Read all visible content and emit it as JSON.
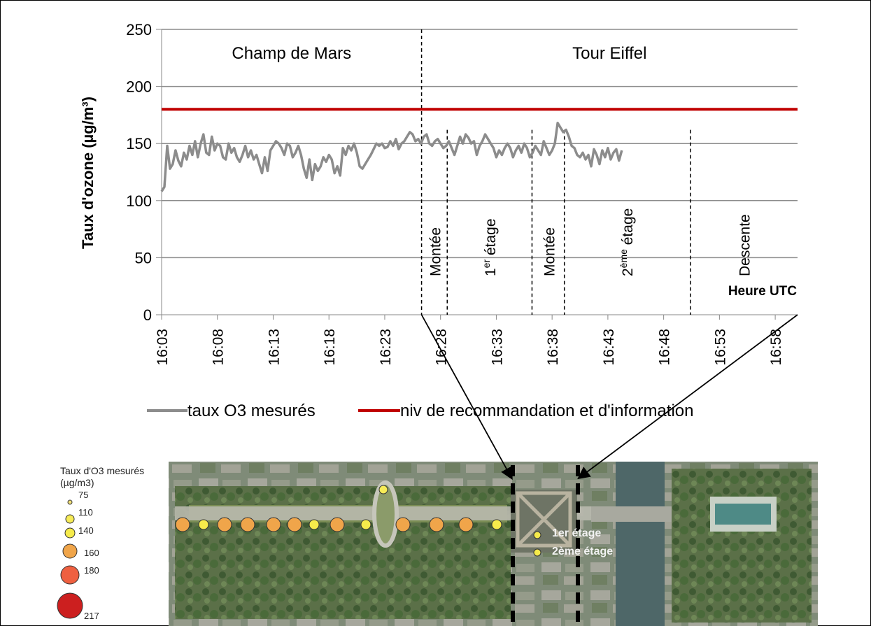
{
  "chart_data": {
    "type": "line",
    "ylabel": "Taux d'ozone (µg/m³)",
    "xlabel": "Heure UTC",
    "ylim": [
      0,
      250
    ],
    "yticks": [
      0,
      50,
      100,
      150,
      200,
      250
    ],
    "x_range_minutes": [
      0,
      57
    ],
    "x_tick_labels": [
      "16:03",
      "16:08",
      "16:13",
      "16:18",
      "16:23",
      "16:28",
      "16:33",
      "16:38",
      "16:43",
      "16:48",
      "16:53",
      "16:58"
    ],
    "grid": "horizontal",
    "legend_position": "bottom",
    "series": [
      {
        "name": "taux O3 mesurés",
        "color": "#8c8c8c",
        "x_step_minutes": 0.25,
        "values": [
          108,
          112,
          148,
          128,
          132,
          144,
          135,
          130,
          142,
          136,
          148,
          140,
          152,
          138,
          150,
          158,
          142,
          140,
          156,
          144,
          150,
          148,
          138,
          136,
          150,
          142,
          146,
          138,
          134,
          140,
          148,
          138,
          144,
          136,
          140,
          132,
          124,
          138,
          126,
          144,
          148,
          152,
          150,
          146,
          140,
          150,
          148,
          138,
          142,
          148,
          140,
          128,
          120,
          136,
          118,
          132,
          126,
          130,
          138,
          134,
          140,
          136,
          124,
          130,
          122,
          146,
          140,
          148,
          144,
          150,
          142,
          130,
          128,
          132,
          136,
          140,
          145,
          150,
          148,
          150,
          146,
          147,
          152,
          148,
          154,
          145,
          150,
          152,
          156,
          160,
          158,
          152,
          154,
          150,
          156,
          158,
          150,
          148,
          152,
          154,
          150,
          146,
          148,
          152,
          146,
          140,
          148,
          156,
          150,
          158,
          155,
          150,
          152,
          140,
          148,
          152,
          158,
          154,
          150,
          146,
          138,
          144,
          140,
          146,
          150,
          146,
          138,
          144,
          148,
          142,
          150,
          146,
          138,
          142,
          148,
          144,
          140,
          152,
          146,
          140,
          144,
          150,
          168,
          164,
          160,
          162,
          156,
          148,
          146,
          140,
          138,
          142,
          136,
          140,
          130,
          145,
          140,
          132,
          144,
          138,
          146,
          136,
          142,
          145,
          135,
          144
        ]
      },
      {
        "name": "niv de recommandation et d'information",
        "color": "#c00000",
        "constant": 180
      }
    ],
    "section_labels": [
      {
        "text": "Champ de Mars",
        "x_start": 0,
        "x_end": 23.3
      },
      {
        "text": "Tour Eiffel",
        "x_start": 23.3,
        "x_end": 57
      }
    ],
    "phase_dividers": [
      23.3,
      25.6,
      33.2,
      36.1,
      47.4
    ],
    "phases": [
      {
        "label": "Montée",
        "x": 24.5
      },
      {
        "label_base": "1",
        "label_sup": "er",
        "label_rest": " étage",
        "x": 29.4
      },
      {
        "label": "Montée",
        "x": 34.7
      },
      {
        "label_base": "2",
        "label_sup": "ème",
        "label_rest": " étage",
        "x": 41.7
      },
      {
        "label": "Descente",
        "x": 52.2
      }
    ]
  },
  "map_legend": {
    "title_line1": "Taux d'O3 mesurés",
    "title_line2": "(µg/m3)",
    "levels": [
      {
        "value": "75",
        "color": "#f4e27a"
      },
      {
        "value": "110",
        "color": "#f7ec57"
      },
      {
        "value": "140",
        "color": "#f6eb4b"
      },
      {
        "value": "160",
        "color": "#f0a54a"
      },
      {
        "value": "180",
        "color": "#ef6040"
      },
      {
        "value": "217",
        "color": "#cc1f1f"
      }
    ]
  },
  "map": {
    "floor1_label": "1er étage",
    "floor2_label": "2ème étage",
    "path_points": [
      {
        "level": "160"
      },
      {
        "level": "140"
      },
      {
        "level": "160"
      },
      {
        "level": "160"
      },
      {
        "level": "160"
      },
      {
        "level": "160"
      },
      {
        "level": "140"
      },
      {
        "level": "160"
      },
      {
        "level": "140"
      },
      {
        "level": "110"
      },
      {
        "level": "160"
      },
      {
        "level": "160"
      },
      {
        "level": "160"
      },
      {
        "level": "140"
      },
      {
        "level": "140"
      },
      {
        "level": "140"
      }
    ]
  }
}
